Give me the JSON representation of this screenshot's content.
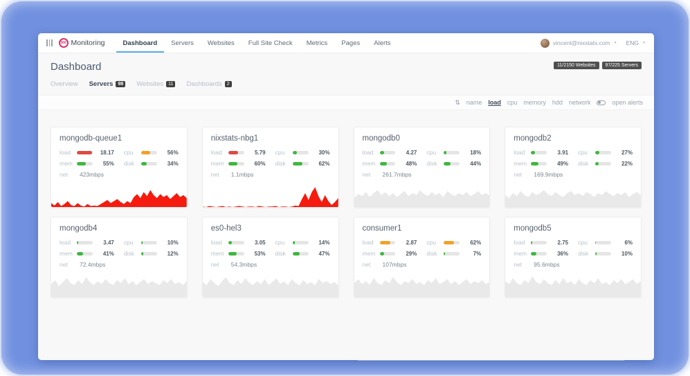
{
  "colors": {
    "frame_blue": "#7191e0",
    "accent_underline": "#56aee8",
    "bar_red": "#dd4b42",
    "bar_orange": "#f0a225",
    "bar_green": "#3eb73e",
    "spark_red": "#f51b0e",
    "spark_gray": "#e9e9e9"
  },
  "nav": {
    "logo_badge": "360",
    "logo_text": "Monitoring",
    "items": [
      {
        "label": "Dashboard",
        "active": true
      },
      {
        "label": "Servers",
        "active": false
      },
      {
        "label": "Websites",
        "active": false
      },
      {
        "label": "Full Site Check",
        "active": false
      },
      {
        "label": "Metrics",
        "active": false
      },
      {
        "label": "Pages",
        "active": false
      },
      {
        "label": "Alerts",
        "active": false
      }
    ],
    "user_email": "vincent@nixstats.com",
    "language": "ENG"
  },
  "header": {
    "title": "Dashboard",
    "badges": [
      "11/2150 Websites",
      "97/225 Servers"
    ]
  },
  "tabs": [
    {
      "label": "Overview",
      "count": "",
      "active": false
    },
    {
      "label": "Servers",
      "count": "98",
      "active": true
    },
    {
      "label": "Websites",
      "count": "11",
      "active": false
    },
    {
      "label": "Dashboards",
      "count": "2",
      "active": false
    }
  ],
  "sortbar": {
    "options": [
      {
        "label": "name",
        "active": false
      },
      {
        "label": "load",
        "active": true
      },
      {
        "label": "cpu",
        "active": false
      },
      {
        "label": "memory",
        "active": false
      },
      {
        "label": "hdd",
        "active": false
      },
      {
        "label": "network",
        "active": false
      }
    ],
    "toggle_label": "open alerts"
  },
  "stat_labels": {
    "load": "load",
    "cpu": "cpu",
    "mem": "mem",
    "disk": "disk",
    "net": "net"
  },
  "cards": [
    {
      "name": "mongodb-queue1",
      "load": {
        "value": "18.17",
        "pct": 95,
        "color": "red"
      },
      "cpu": {
        "value": "56%",
        "pct": 56,
        "color": "orange"
      },
      "mem": {
        "value": "55%",
        "pct": 55,
        "color": "green"
      },
      "disk": {
        "value": "34%",
        "pct": 34,
        "color": "green"
      },
      "net": "423mbps",
      "spark": {
        "color": "red",
        "points": [
          8,
          3,
          10,
          2,
          6,
          12,
          4,
          2,
          8,
          3,
          1,
          6,
          2,
          3,
          2,
          6,
          10,
          14,
          8,
          12,
          16,
          10,
          6,
          12,
          8,
          20,
          26,
          18,
          30,
          22,
          34,
          24,
          18,
          26,
          20,
          24,
          16,
          22,
          28,
          20,
          24,
          18
        ]
      }
    },
    {
      "name": "nixstats-nbg1",
      "load": {
        "value": "5.79",
        "pct": 62,
        "color": "red"
      },
      "cpu": {
        "value": "30%",
        "pct": 30,
        "color": "green"
      },
      "mem": {
        "value": "60%",
        "pct": 60,
        "color": "green"
      },
      "disk": {
        "value": "62%",
        "pct": 62,
        "color": "green"
      },
      "net": "1.1mbps",
      "spark": {
        "color": "red",
        "points": [
          1,
          0,
          2,
          1,
          0,
          1,
          2,
          0,
          1,
          0,
          1,
          2,
          1,
          0,
          1,
          1,
          0,
          2,
          1,
          0,
          1,
          1,
          2,
          0,
          1,
          1,
          0,
          1,
          3,
          2,
          16,
          28,
          14,
          30,
          40,
          22,
          10,
          24,
          12,
          4,
          10,
          18
        ]
      }
    },
    {
      "name": "mongodb0",
      "load": {
        "value": "4.27",
        "pct": 28,
        "color": "green"
      },
      "cpu": {
        "value": "18%",
        "pct": 18,
        "color": "green"
      },
      "mem": {
        "value": "48%",
        "pct": 48,
        "color": "green"
      },
      "disk": {
        "value": "44%",
        "pct": 44,
        "color": "green"
      },
      "net": "261.7mbps",
      "spark": {
        "color": "gray",
        "points": [
          18,
          26,
          22,
          30,
          20,
          28,
          34,
          24,
          30,
          22,
          28,
          20,
          26,
          32,
          22,
          28,
          24,
          34,
          26,
          22,
          30,
          24,
          28,
          20,
          32,
          26,
          22,
          28,
          24,
          30,
          22,
          26,
          32,
          24,
          28,
          22
        ]
      }
    },
    {
      "name": "mongodb2",
      "load": {
        "value": "3.91",
        "pct": 25,
        "color": "green"
      },
      "cpu": {
        "value": "27%",
        "pct": 27,
        "color": "green"
      },
      "mem": {
        "value": "49%",
        "pct": 49,
        "color": "green"
      },
      "disk": {
        "value": "22%",
        "pct": 22,
        "color": "green"
      },
      "net": "169.9mbps",
      "spark": {
        "color": "gray",
        "points": [
          24,
          18,
          28,
          22,
          32,
          24,
          20,
          30,
          24,
          28,
          34,
          26,
          22,
          30,
          24,
          20,
          28,
          32,
          24,
          28,
          22,
          30,
          26,
          20,
          28,
          24,
          32,
          26,
          22,
          28,
          24,
          30,
          20,
          26,
          30,
          24
        ]
      }
    },
    {
      "name": "mongodb4",
      "load": {
        "value": "3.47",
        "pct": 9,
        "color": "green"
      },
      "cpu": {
        "value": "10%",
        "pct": 10,
        "color": "green"
      },
      "mem": {
        "value": "41%",
        "pct": 41,
        "color": "green"
      },
      "disk": {
        "value": "12%",
        "pct": 12,
        "color": "green"
      },
      "net": "72.4mbps",
      "spark": {
        "color": "gray",
        "points": [
          26,
          34,
          22,
          30,
          38,
          28,
          24,
          34,
          26,
          40,
          30,
          24,
          32,
          26,
          36,
          28,
          24,
          34,
          28,
          38,
          26,
          32,
          24,
          30,
          36,
          26,
          32,
          28,
          24,
          34,
          28,
          36,
          26,
          30,
          24,
          32
        ]
      }
    },
    {
      "name": "es0-hel3",
      "load": {
        "value": "3.05",
        "pct": 23,
        "color": "green"
      },
      "cpu": {
        "value": "14%",
        "pct": 14,
        "color": "green"
      },
      "mem": {
        "value": "53%",
        "pct": 53,
        "color": "green"
      },
      "disk": {
        "value": "47%",
        "pct": 47,
        "color": "green"
      },
      "net": "54.3mbps",
      "spark": {
        "color": "gray",
        "points": [
          30,
          24,
          36,
          28,
          22,
          32,
          40,
          28,
          24,
          34,
          26,
          38,
          28,
          24,
          32,
          26,
          36,
          24,
          30,
          38,
          26,
          32,
          24,
          36,
          28,
          24,
          34,
          26,
          30,
          24,
          36,
          28,
          32,
          26,
          30,
          24
        ]
      }
    },
    {
      "name": "consumer1",
      "load": {
        "value": "2.87",
        "pct": 68,
        "color": "orange"
      },
      "cpu": {
        "value": "62%",
        "pct": 62,
        "color": "orange"
      },
      "mem": {
        "value": "29%",
        "pct": 29,
        "color": "green"
      },
      "disk": {
        "value": "7%",
        "pct": 7,
        "color": "green"
      },
      "net": "107mbps",
      "spark": {
        "color": "gray",
        "points": [
          28,
          36,
          26,
          32,
          24,
          38,
          28,
          24,
          34,
          28,
          40,
          30,
          24,
          32,
          28,
          36,
          26,
          30,
          24,
          34,
          28,
          38,
          26,
          30,
          36,
          26,
          32,
          24,
          30,
          36,
          26,
          32,
          28,
          34,
          26,
          30
        ]
      }
    },
    {
      "name": "mongodb5",
      "load": {
        "value": "2.75",
        "pct": 8,
        "color": "green"
      },
      "cpu": {
        "value": "6%",
        "pct": 6,
        "color": "green"
      },
      "mem": {
        "value": "36%",
        "pct": 36,
        "color": "green"
      },
      "disk": {
        "value": "10%",
        "pct": 10,
        "color": "green"
      },
      "net": "95.6mbps",
      "spark": {
        "color": "gray",
        "points": [
          32,
          26,
          38,
          28,
          24,
          34,
          28,
          42,
          30,
          26,
          36,
          28,
          24,
          34,
          26,
          38,
          28,
          32,
          24,
          36,
          28,
          24,
          34,
          28,
          38,
          26,
          30,
          24,
          34,
          28,
          36,
          26,
          30,
          36,
          26,
          32
        ]
      }
    }
  ]
}
